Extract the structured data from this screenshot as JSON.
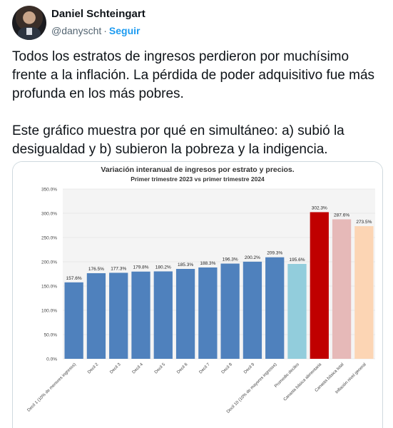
{
  "author": {
    "name": "Daniel Schteingart",
    "handle": "@danyscht",
    "separator": "·",
    "follow_label": "Seguir"
  },
  "tweet": {
    "text": "Todos los estratos de ingresos perdieron por muchísimo frente a la inflación. La pérdida de poder adquisitivo fue más profunda en los más pobres.\n\nEste gráfico muestra por qué en simultáneo: a) subió la desigualdad y b) subieron la pobreza y la indigencia."
  },
  "chart_data": {
    "type": "bar",
    "title": "Variación interanual de ingresos por estrato y precios.",
    "subtitle": "Primer trimestre 2023 vs primer trimestre 2024",
    "ylim": [
      0,
      350
    ],
    "yticks": [
      "0.0%",
      "50.0%",
      "100.0%",
      "150.0%",
      "200.0%",
      "250.0%",
      "300.0%",
      "350.0%"
    ],
    "grid": true,
    "categories": [
      "Decil 1 (10% de menores ingresos)",
      "Decil 2",
      "Decil 3",
      "Decil 4",
      "Decil 5",
      "Decil 6",
      "Decil 7",
      "Decil 8",
      "Decil 9",
      "Decil 10 (10% de mayores ingresos)",
      "Promedio deciles",
      "Canasta básica alimentaria",
      "Canasta básica total",
      "Inflación nivel general"
    ],
    "values": [
      157.6,
      176.5,
      177.3,
      179.8,
      180.2,
      185.3,
      188.3,
      196.3,
      200.2,
      209.3,
      195.6,
      302.3,
      287.6,
      273.5
    ],
    "labels": [
      "157.6%",
      "176.5%",
      "177.3%",
      "179.8%",
      "180.2%",
      "185.3%",
      "188.3%",
      "196.3%",
      "200.2%",
      "209.3%",
      "195.6%",
      "302.3%",
      "287.6%",
      "273.5%"
    ],
    "colors": [
      "#4f81bd",
      "#4f81bd",
      "#4f81bd",
      "#4f81bd",
      "#4f81bd",
      "#4f81bd",
      "#4f81bd",
      "#4f81bd",
      "#4f81bd",
      "#4f81bd",
      "#92cddc",
      "#c00000",
      "#e6b9b8",
      "#fcd5b4"
    ]
  }
}
